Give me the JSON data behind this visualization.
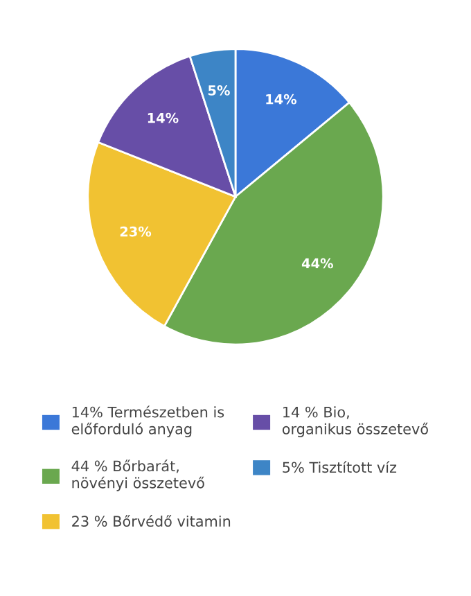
{
  "chart_data": {
    "type": "pie",
    "categories": [
      "14% Természetben is\nelőforduló anyag",
      "44 % Bőrbarát,\nnövényi összetevő",
      "23 % Bőrvédő vitamin",
      "14 % Bio,\norganikus összetevő",
      "5% Tisztított víz"
    ],
    "values": [
      14,
      44,
      23,
      14,
      5
    ],
    "value_labels": [
      "14%",
      "44%",
      "23%",
      "14%",
      "5%"
    ],
    "colors": [
      "#3b78d8",
      "#6aa84f",
      "#f1c232",
      "#674ea7",
      "#3d85c6"
    ],
    "legend": "bottom"
  }
}
